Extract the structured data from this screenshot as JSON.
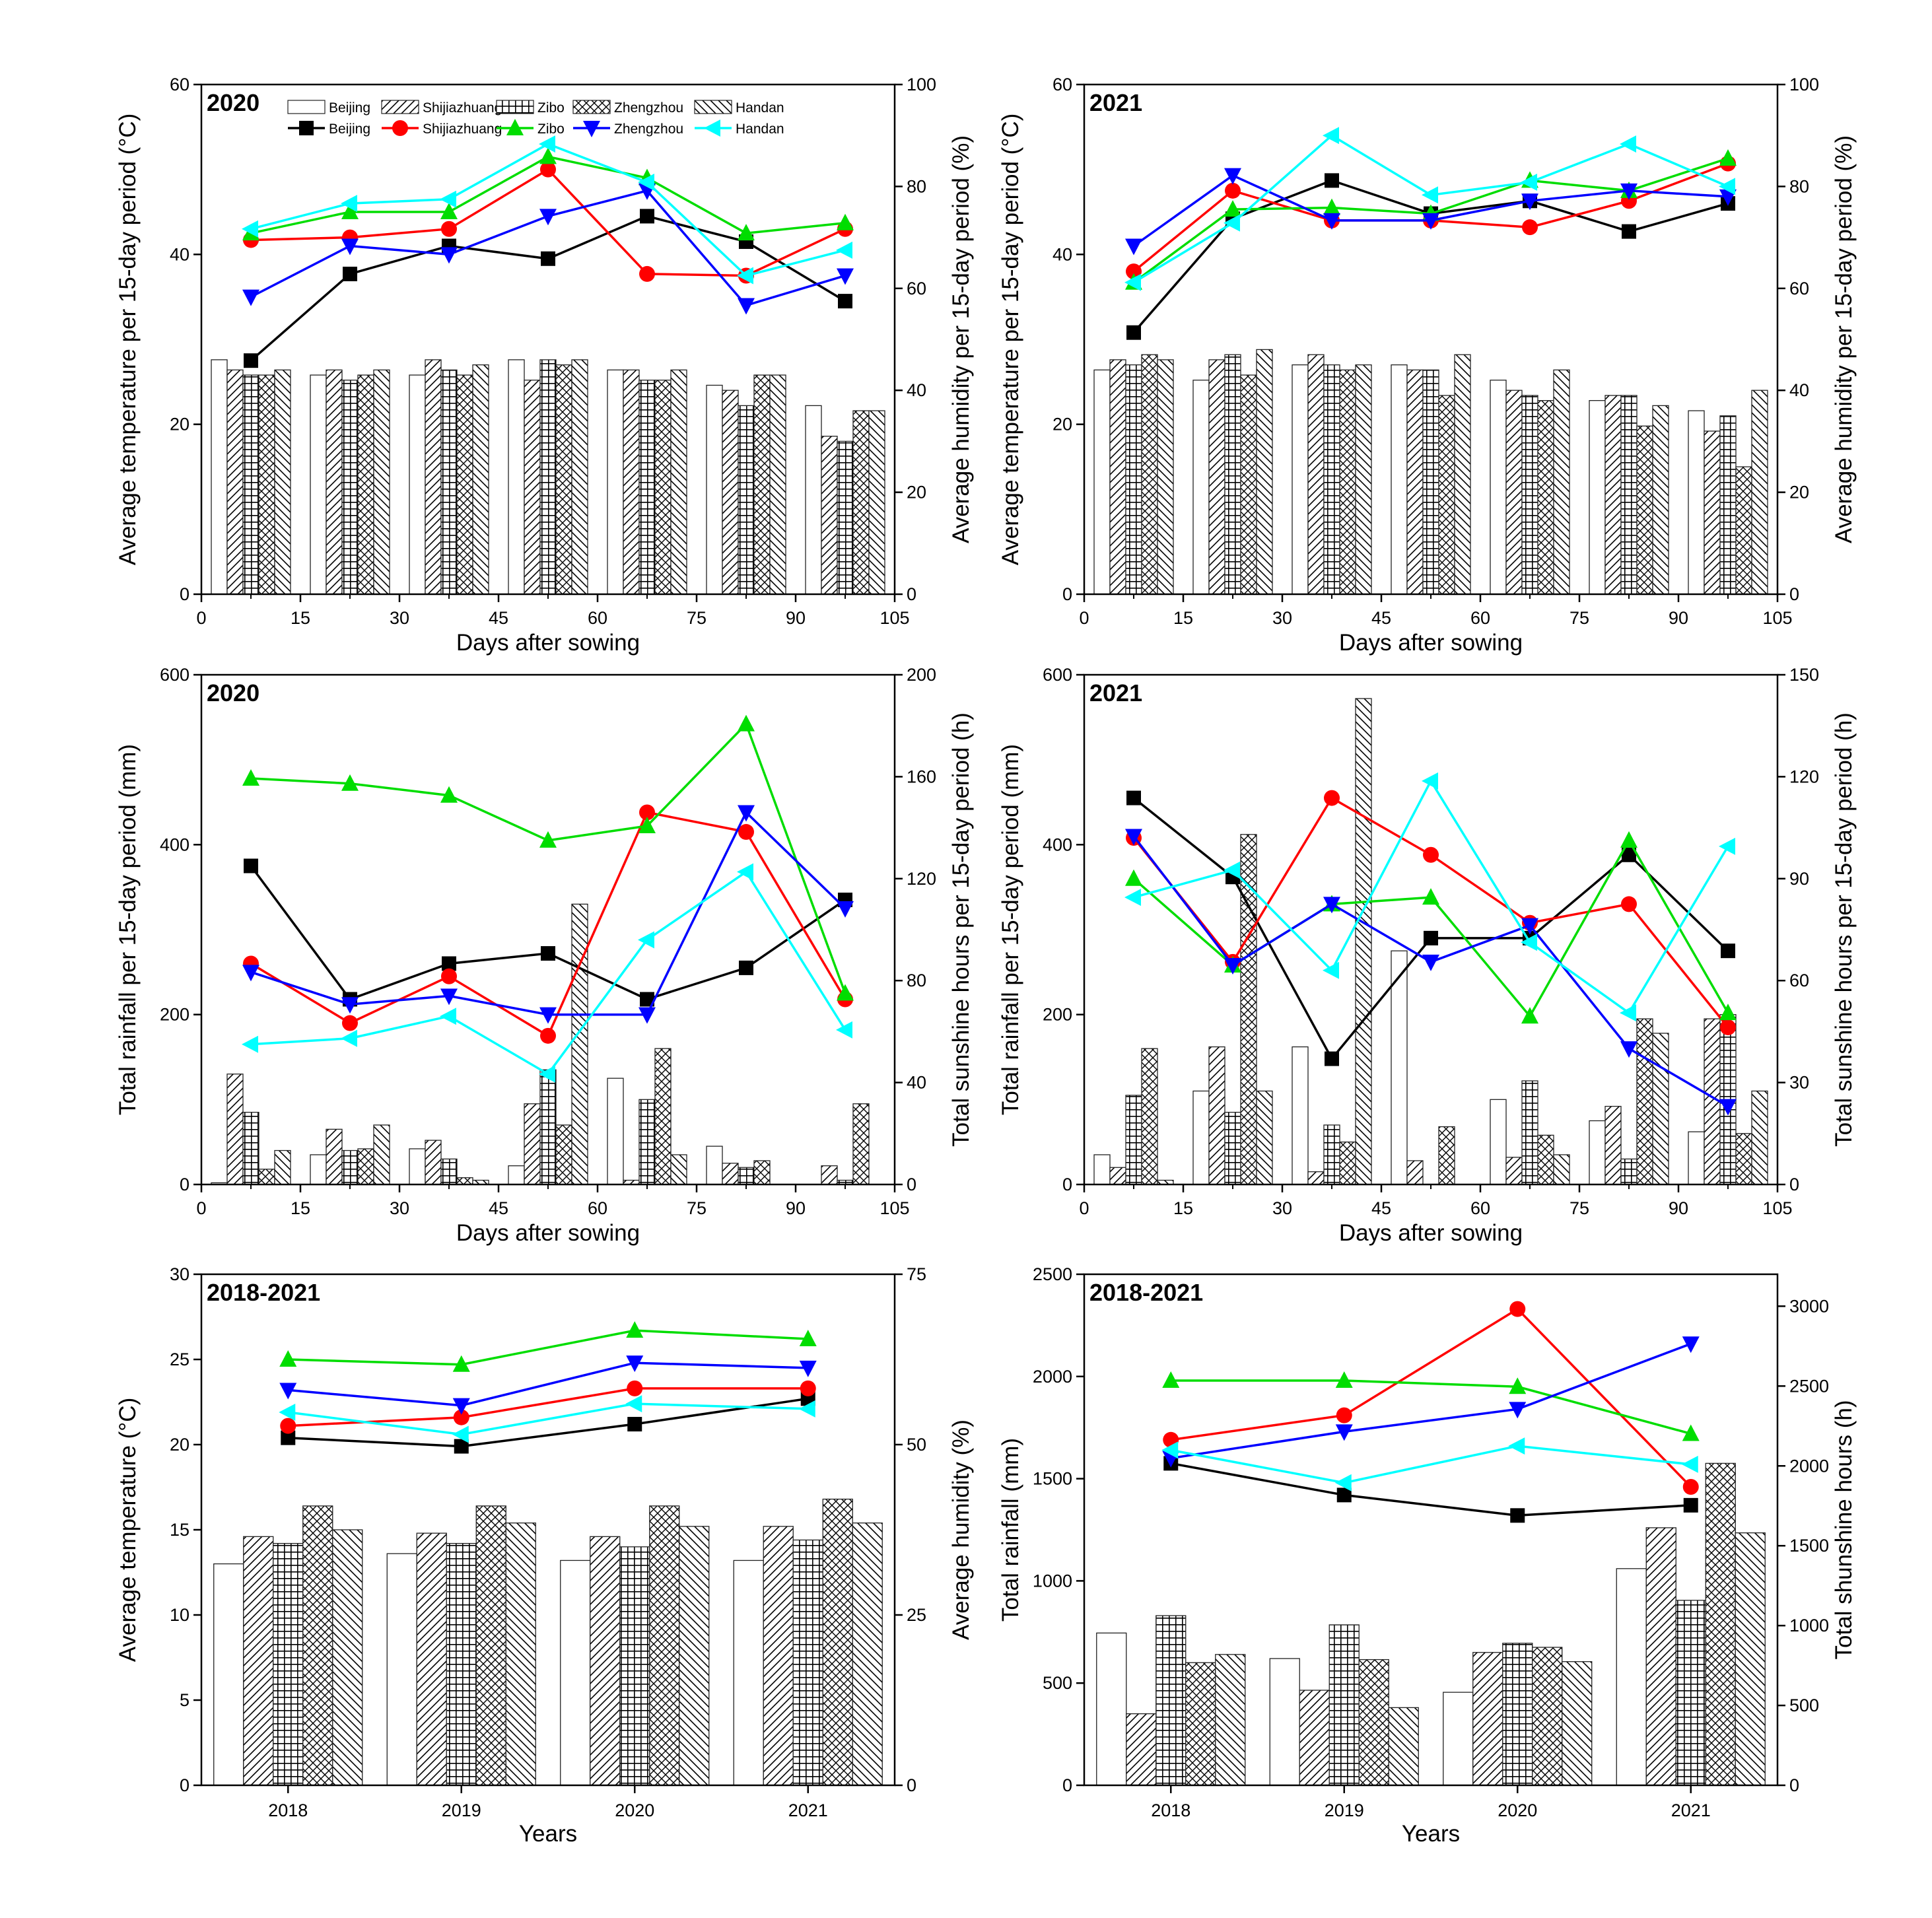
{
  "sites": [
    "Beijing",
    "Shijiazhuang",
    "Zibo",
    "Zhengzhou",
    "Handan"
  ],
  "site_colors": [
    "#000000",
    "#ff0000",
    "#00dd00",
    "#0000ff",
    "#00ffff"
  ],
  "site_markers": [
    "square",
    "circle",
    "triangle-up",
    "triangle-down",
    "triangle-left"
  ],
  "legend": {
    "bar_labels": [
      "Beijing",
      "Shijiazhuang",
      "Zibo",
      "Zhengzhou",
      "Handan"
    ],
    "line_labels": [
      "Beijing",
      "Shijiazhuang",
      "Zibo",
      "Zhengzhou",
      "Handan"
    ]
  },
  "chart_data": [
    {
      "type": "bar+line",
      "panel": "temp-humidity-2020",
      "title": "2020",
      "xlabel": "Days after sowing",
      "ylabel": "Average temperature per 15-day period (°C)",
      "ylabel_right": "Average humidity per 15-day period (%)",
      "xlim": [
        0,
        105
      ],
      "xticks": [
        0,
        15,
        30,
        45,
        60,
        75,
        90,
        105
      ],
      "ylim": [
        0,
        60
      ],
      "yticks": [
        0,
        20,
        40,
        60
      ],
      "ylim_right": [
        0,
        100
      ],
      "yticks_right": [
        0,
        20,
        40,
        60,
        80,
        100
      ],
      "x": [
        7.5,
        22.5,
        37.5,
        52.5,
        67.5,
        82.5,
        97.5
      ],
      "bar_series_axis": "right",
      "bar_series": [
        {
          "name": "Beijing",
          "values": [
            46,
            43,
            43,
            46,
            44,
            41,
            37
          ]
        },
        {
          "name": "Shijiazhuang",
          "values": [
            44,
            44,
            46,
            42,
            44,
            40,
            31
          ]
        },
        {
          "name": "Zibo",
          "values": [
            43,
            42,
            44,
            46,
            42,
            37,
            30
          ]
        },
        {
          "name": "Zhengzhou",
          "values": [
            43,
            43,
            43,
            45,
            42,
            43,
            36
          ]
        },
        {
          "name": "Handan",
          "values": [
            44,
            44,
            45,
            46,
            44,
            43,
            36
          ]
        }
      ],
      "line_series_axis": "left",
      "line_series": [
        {
          "name": "Beijing",
          "values": [
            27.5,
            37.7,
            41,
            39.5,
            44.5,
            41.5,
            34.5
          ]
        },
        {
          "name": "Shijiazhuang",
          "values": [
            41.7,
            42,
            43,
            50,
            37.7,
            37.5,
            43
          ]
        },
        {
          "name": "Zibo",
          "values": [
            42.5,
            45,
            45,
            51.5,
            49,
            42.5,
            43.7
          ]
        },
        {
          "name": "Zhengzhou",
          "values": [
            35,
            41,
            40,
            44.5,
            47.5,
            34,
            37.5
          ]
        },
        {
          "name": "Handan",
          "values": [
            43,
            46,
            46.5,
            53,
            48.5,
            37.5,
            40.5
          ]
        }
      ]
    },
    {
      "type": "bar+line",
      "panel": "temp-humidity-2021",
      "title": "2021",
      "xlabel": "Days after sowing",
      "ylabel": "Average temperature per 15-day period (°C)",
      "ylabel_right": "Average humidity per 15-day period (%)",
      "xlim": [
        0,
        105
      ],
      "xticks": [
        0,
        15,
        30,
        45,
        60,
        75,
        90,
        105
      ],
      "ylim": [
        0,
        60
      ],
      "yticks": [
        0,
        20,
        40,
        60
      ],
      "ylim_right": [
        0,
        100
      ],
      "yticks_right": [
        0,
        20,
        40,
        60,
        80,
        100
      ],
      "x": [
        7.5,
        22.5,
        37.5,
        52.5,
        67.5,
        82.5,
        97.5
      ],
      "bar_series_axis": "right",
      "bar_series": [
        {
          "name": "Beijing",
          "values": [
            44,
            42,
            45,
            45,
            42,
            38,
            36
          ]
        },
        {
          "name": "Shijiazhuang",
          "values": [
            46,
            46,
            47,
            44,
            40,
            39,
            32
          ]
        },
        {
          "name": "Zibo",
          "values": [
            45,
            47,
            45,
            44,
            39,
            39,
            35
          ]
        },
        {
          "name": "Zhengzhou",
          "values": [
            47,
            43,
            44,
            39,
            38,
            33,
            25
          ]
        },
        {
          "name": "Handan",
          "values": [
            46,
            48,
            45,
            47,
            44,
            37,
            40
          ]
        }
      ],
      "line_series_axis": "left",
      "line_series": [
        {
          "name": "Beijing",
          "values": [
            30.8,
            44.2,
            48.7,
            44.8,
            46.3,
            42.7,
            46
          ]
        },
        {
          "name": "Shijiazhuang",
          "values": [
            38,
            47.5,
            44,
            44,
            43.2,
            46.3,
            50.7
          ]
        },
        {
          "name": "Zibo",
          "values": [
            36.7,
            45.3,
            45.5,
            44.8,
            48.7,
            47.5,
            51.3
          ]
        },
        {
          "name": "Zhengzhou",
          "values": [
            41,
            49.3,
            44,
            44,
            46.3,
            47.5,
            46.8
          ]
        },
        {
          "name": "Handan",
          "values": [
            36.7,
            43.7,
            54,
            47,
            48.5,
            53,
            48
          ]
        }
      ]
    },
    {
      "type": "bar+line",
      "panel": "rain-sunshine-2020",
      "title": "2020",
      "xlabel": "Days after sowing",
      "ylabel": "Total rainfall per 15-day period (mm)",
      "ylabel_right": "Total sunshine hours per 15-day period (h)",
      "xlim": [
        0,
        105
      ],
      "xticks": [
        0,
        15,
        30,
        45,
        60,
        75,
        90,
        105
      ],
      "ylim": [
        0,
        600
      ],
      "yticks": [
        0,
        200,
        400,
        600
      ],
      "ylim_right": [
        0,
        200
      ],
      "yticks_right": [
        0,
        40,
        80,
        120,
        160,
        200
      ],
      "x": [
        7.5,
        22.5,
        37.5,
        52.5,
        67.5,
        82.5,
        97.5
      ],
      "bar_series_axis": "left",
      "bar_series": [
        {
          "name": "Beijing",
          "values": [
            2,
            35,
            42,
            22,
            125,
            45,
            0
          ]
        },
        {
          "name": "Shijiazhuang",
          "values": [
            130,
            65,
            52,
            95,
            5,
            25,
            22
          ]
        },
        {
          "name": "Zibo",
          "values": [
            85,
            40,
            30,
            135,
            100,
            20,
            5
          ]
        },
        {
          "name": "Zhengzhou",
          "values": [
            18,
            42,
            8,
            70,
            160,
            28,
            95
          ]
        },
        {
          "name": "Handan",
          "values": [
            40,
            70,
            5,
            330,
            35,
            0,
            0
          ]
        }
      ],
      "line_series_axis": "left",
      "line_series": [
        {
          "name": "Beijing",
          "values": [
            375,
            218,
            260,
            272,
            218,
            255,
            335
          ]
        },
        {
          "name": "Shijiazhuang",
          "values": [
            260,
            190,
            245,
            175,
            438,
            415,
            218
          ]
        },
        {
          "name": "Zibo",
          "values": [
            478,
            472,
            458,
            405,
            422,
            542,
            225
          ]
        },
        {
          "name": "Zhengzhou",
          "values": [
            250,
            212,
            222,
            200,
            200,
            438,
            325
          ]
        },
        {
          "name": "Handan",
          "values": [
            165,
            172,
            198,
            130,
            288,
            368,
            182
          ]
        }
      ]
    },
    {
      "type": "bar+line",
      "panel": "rain-sunshine-2021",
      "title": "2021",
      "xlabel": "Days after sowing",
      "ylabel": "Total rainfall per 15-day period (mm)",
      "ylabel_right": "Total sunshine hours per 15-day period (h)",
      "xlim": [
        0,
        105
      ],
      "xticks": [
        0,
        15,
        30,
        45,
        60,
        75,
        90,
        105
      ],
      "ylim": [
        0,
        600
      ],
      "yticks": [
        0,
        200,
        400,
        600
      ],
      "ylim_right": [
        0,
        150
      ],
      "yticks_right": [
        0,
        30,
        60,
        90,
        120,
        150
      ],
      "x": [
        7.5,
        22.5,
        37.5,
        52.5,
        67.5,
        82.5,
        97.5
      ],
      "bar_series_axis": "left",
      "bar_series": [
        {
          "name": "Beijing",
          "values": [
            35,
            110,
            162,
            275,
            100,
            75,
            62
          ]
        },
        {
          "name": "Shijiazhuang",
          "values": [
            20,
            162,
            15,
            28,
            32,
            92,
            195
          ]
        },
        {
          "name": "Zibo",
          "values": [
            105,
            85,
            70,
            0,
            122,
            30,
            200
          ]
        },
        {
          "name": "Zhengzhou",
          "values": [
            160,
            412,
            50,
            68,
            58,
            195,
            60
          ]
        },
        {
          "name": "Handan",
          "values": [
            5,
            110,
            572,
            0,
            35,
            178,
            110
          ]
        }
      ],
      "line_series_axis": "left",
      "line_series": [
        {
          "name": "Beijing",
          "values": [
            455,
            362,
            148,
            290,
            290,
            388,
            275
          ]
        },
        {
          "name": "Shijiazhuang",
          "values": [
            408,
            262,
            455,
            388,
            308,
            330,
            185
          ]
        },
        {
          "name": "Zibo",
          "values": [
            360,
            258,
            330,
            338,
            198,
            405,
            202
          ]
        },
        {
          "name": "Zhengzhou",
          "values": [
            410,
            258,
            330,
            262,
            305,
            160,
            92
          ]
        },
        {
          "name": "Handan",
          "values": [
            338,
            370,
            252,
            475,
            285,
            202,
            398
          ]
        }
      ]
    },
    {
      "type": "bar+line",
      "panel": "temp-humidity-2018-2021",
      "title": "2018-2021",
      "xlabel": "Years",
      "ylabel": "Average temperature (°C)",
      "ylabel_right": "Average humidity (%)",
      "categories": [
        "2018",
        "2019",
        "2020",
        "2021"
      ],
      "ylim": [
        0,
        30
      ],
      "yticks": [
        0,
        5,
        10,
        15,
        20,
        25,
        30
      ],
      "ylim_right": [
        0,
        75
      ],
      "yticks_right": [
        0,
        25,
        50,
        75
      ],
      "bar_series_axis": "right",
      "bar_series": [
        {
          "name": "Beijing",
          "values": [
            32.5,
            34,
            33,
            33
          ]
        },
        {
          "name": "Shijiazhuang",
          "values": [
            36.5,
            37,
            36.5,
            38
          ]
        },
        {
          "name": "Zibo",
          "values": [
            35.5,
            35.5,
            35,
            36
          ]
        },
        {
          "name": "Zhengzhou",
          "values": [
            41,
            41,
            41,
            42
          ]
        },
        {
          "name": "Handan",
          "values": [
            37.5,
            38.5,
            38,
            38.5
          ]
        }
      ],
      "line_series_axis": "left",
      "line_series": [
        {
          "name": "Beijing",
          "values": [
            20.4,
            19.9,
            21.2,
            22.7
          ]
        },
        {
          "name": "Shijiazhuang",
          "values": [
            21.1,
            21.6,
            23.3,
            23.3
          ]
        },
        {
          "name": "Zibo",
          "values": [
            25,
            24.7,
            26.7,
            26.2
          ]
        },
        {
          "name": "Zhengzhou",
          "values": [
            23.2,
            22.3,
            24.8,
            24.5
          ]
        },
        {
          "name": "Handan",
          "values": [
            21.9,
            20.6,
            22.4,
            22.1
          ]
        }
      ]
    },
    {
      "type": "bar+line",
      "panel": "rain-sunshine-2018-2021",
      "title": "2018-2021",
      "xlabel": "Years",
      "ylabel": "Total rainfall (mm)",
      "ylabel_right": "Total shunshine hours (h)",
      "categories": [
        "2018",
        "2019",
        "2020",
        "2021"
      ],
      "ylim": [
        0,
        2500
      ],
      "yticks": [
        0,
        500,
        1000,
        1500,
        2000,
        2500
      ],
      "ylim_right": [
        0,
        3200
      ],
      "yticks_right": [
        0,
        500,
        1000,
        1500,
        2000,
        2500,
        3000
      ],
      "bar_series_axis": "left",
      "bar_series": [
        {
          "name": "Beijing",
          "values": [
            745,
            620,
            455,
            1060
          ]
        },
        {
          "name": "Shijiazhuang",
          "values": [
            350,
            465,
            650,
            1260
          ]
        },
        {
          "name": "Zibo",
          "values": [
            830,
            785,
            695,
            905
          ]
        },
        {
          "name": "Zhengzhou",
          "values": [
            600,
            615,
            675,
            1575
          ]
        },
        {
          "name": "Handan",
          "values": [
            640,
            380,
            605,
            1235
          ]
        }
      ],
      "line_series_axis": "left",
      "line_series": [
        {
          "name": "Beijing",
          "values": [
            1575,
            1420,
            1320,
            1370
          ]
        },
        {
          "name": "Shijiazhuang",
          "values": [
            1690,
            1810,
            2330,
            1460
          ]
        },
        {
          "name": "Zibo",
          "values": [
            1980,
            1980,
            1950,
            1720
          ]
        },
        {
          "name": "Zhengzhou",
          "values": [
            1600,
            1730,
            1840,
            2160
          ]
        },
        {
          "name": "Handan",
          "values": [
            1640,
            1480,
            1660,
            1570
          ]
        }
      ]
    }
  ]
}
